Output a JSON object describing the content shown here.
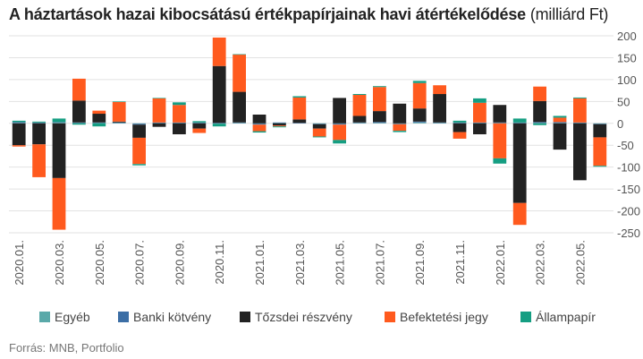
{
  "title": {
    "main": "A háztartások hazai kibocsátású értékpapírjainak havi átértékelődése",
    "unit": "(milliárd Ft)"
  },
  "source": "Forrás: MNB, Portfolio",
  "colors": {
    "Egyéb": "#5aa9a9",
    "Banki kötvény": "#3c6ea5",
    "Tőzsdei részvény": "#222222",
    "Befektetési jegy": "#ff5a1e",
    "Állampapír": "#159e82"
  },
  "chart_data": {
    "type": "bar",
    "stacked": true,
    "y_axis_side": "right",
    "ylim": [
      -250,
      200
    ],
    "yticks": [
      200,
      150,
      100,
      50,
      0,
      -50,
      -100,
      -150,
      -200,
      -250
    ],
    "grid": true,
    "legend_position": "bottom",
    "categories": [
      "2020.01.",
      "2020.02.",
      "2020.03.",
      "2020.04.",
      "2020.05.",
      "2020.06.",
      "2020.07.",
      "2020.08.",
      "2020.09.",
      "2020.10.",
      "2020.11.",
      "2020.12.",
      "2021.01.",
      "2021.02.",
      "2021.03.",
      "2021.04.",
      "2021.05.",
      "2021.06.",
      "2021.07.",
      "2021.08.",
      "2021.09.",
      "2021.10.",
      "2021.11.",
      "2021.12.",
      "2022.01.",
      "2022.02.",
      "2022.03.",
      "2022.04.",
      "2022.05.",
      "2022.06."
    ],
    "xtick_labels": [
      "2020.01.",
      "2020.03.",
      "2020.05.",
      "2020.07.",
      "2020.09.",
      "2020.11.",
      "2021.01.",
      "2021.03.",
      "2021.05.",
      "2021.07.",
      "2021.09.",
      "2021.11.",
      "2022.01.",
      "2022.03.",
      "2022.05."
    ],
    "series": [
      {
        "name": "Egyéb",
        "values": [
          1,
          1,
          2,
          1,
          1,
          1,
          -1,
          1,
          1,
          1,
          -1,
          1,
          -1,
          1,
          0,
          -1,
          -1,
          1,
          1,
          -1,
          2,
          1,
          1,
          1,
          1,
          1,
          1,
          1,
          1,
          -1
        ]
      },
      {
        "name": "Banki kötvény",
        "values": [
          2,
          1,
          1,
          1,
          1,
          1,
          -2,
          1,
          1,
          1,
          1,
          1,
          -2,
          1,
          1,
          -1,
          -2,
          1,
          2,
          -1,
          2,
          1,
          1,
          1,
          1,
          1,
          2,
          2,
          1,
          -1
        ]
      },
      {
        "name": "Tőzsdei részvény",
        "values": [
          -50,
          -48,
          -125,
          50,
          20,
          2,
          -30,
          -8,
          -25,
          -12,
          130,
          70,
          20,
          -5,
          8,
          -10,
          58,
          15,
          25,
          45,
          30,
          65,
          -20,
          -25,
          40,
          -182,
          48,
          -60,
          -130,
          -30
        ]
      },
      {
        "name": "Befektetési jegy",
        "values": [
          -3,
          -75,
          -118,
          50,
          7,
          45,
          -60,
          55,
          40,
          -10,
          65,
          85,
          -15,
          -2,
          50,
          -18,
          -35,
          48,
          55,
          -15,
          58,
          20,
          -15,
          45,
          -80,
          -50,
          33,
          10,
          55,
          -65
        ]
      },
      {
        "name": "Állampapír",
        "values": [
          3,
          2,
          8,
          -3,
          -7,
          1,
          -3,
          1,
          6,
          3,
          -6,
          1,
          -3,
          -2,
          3,
          -2,
          -8,
          2,
          2,
          -3,
          5,
          0,
          4,
          10,
          -12,
          9,
          -4,
          4,
          2,
          -2
        ]
      }
    ]
  }
}
